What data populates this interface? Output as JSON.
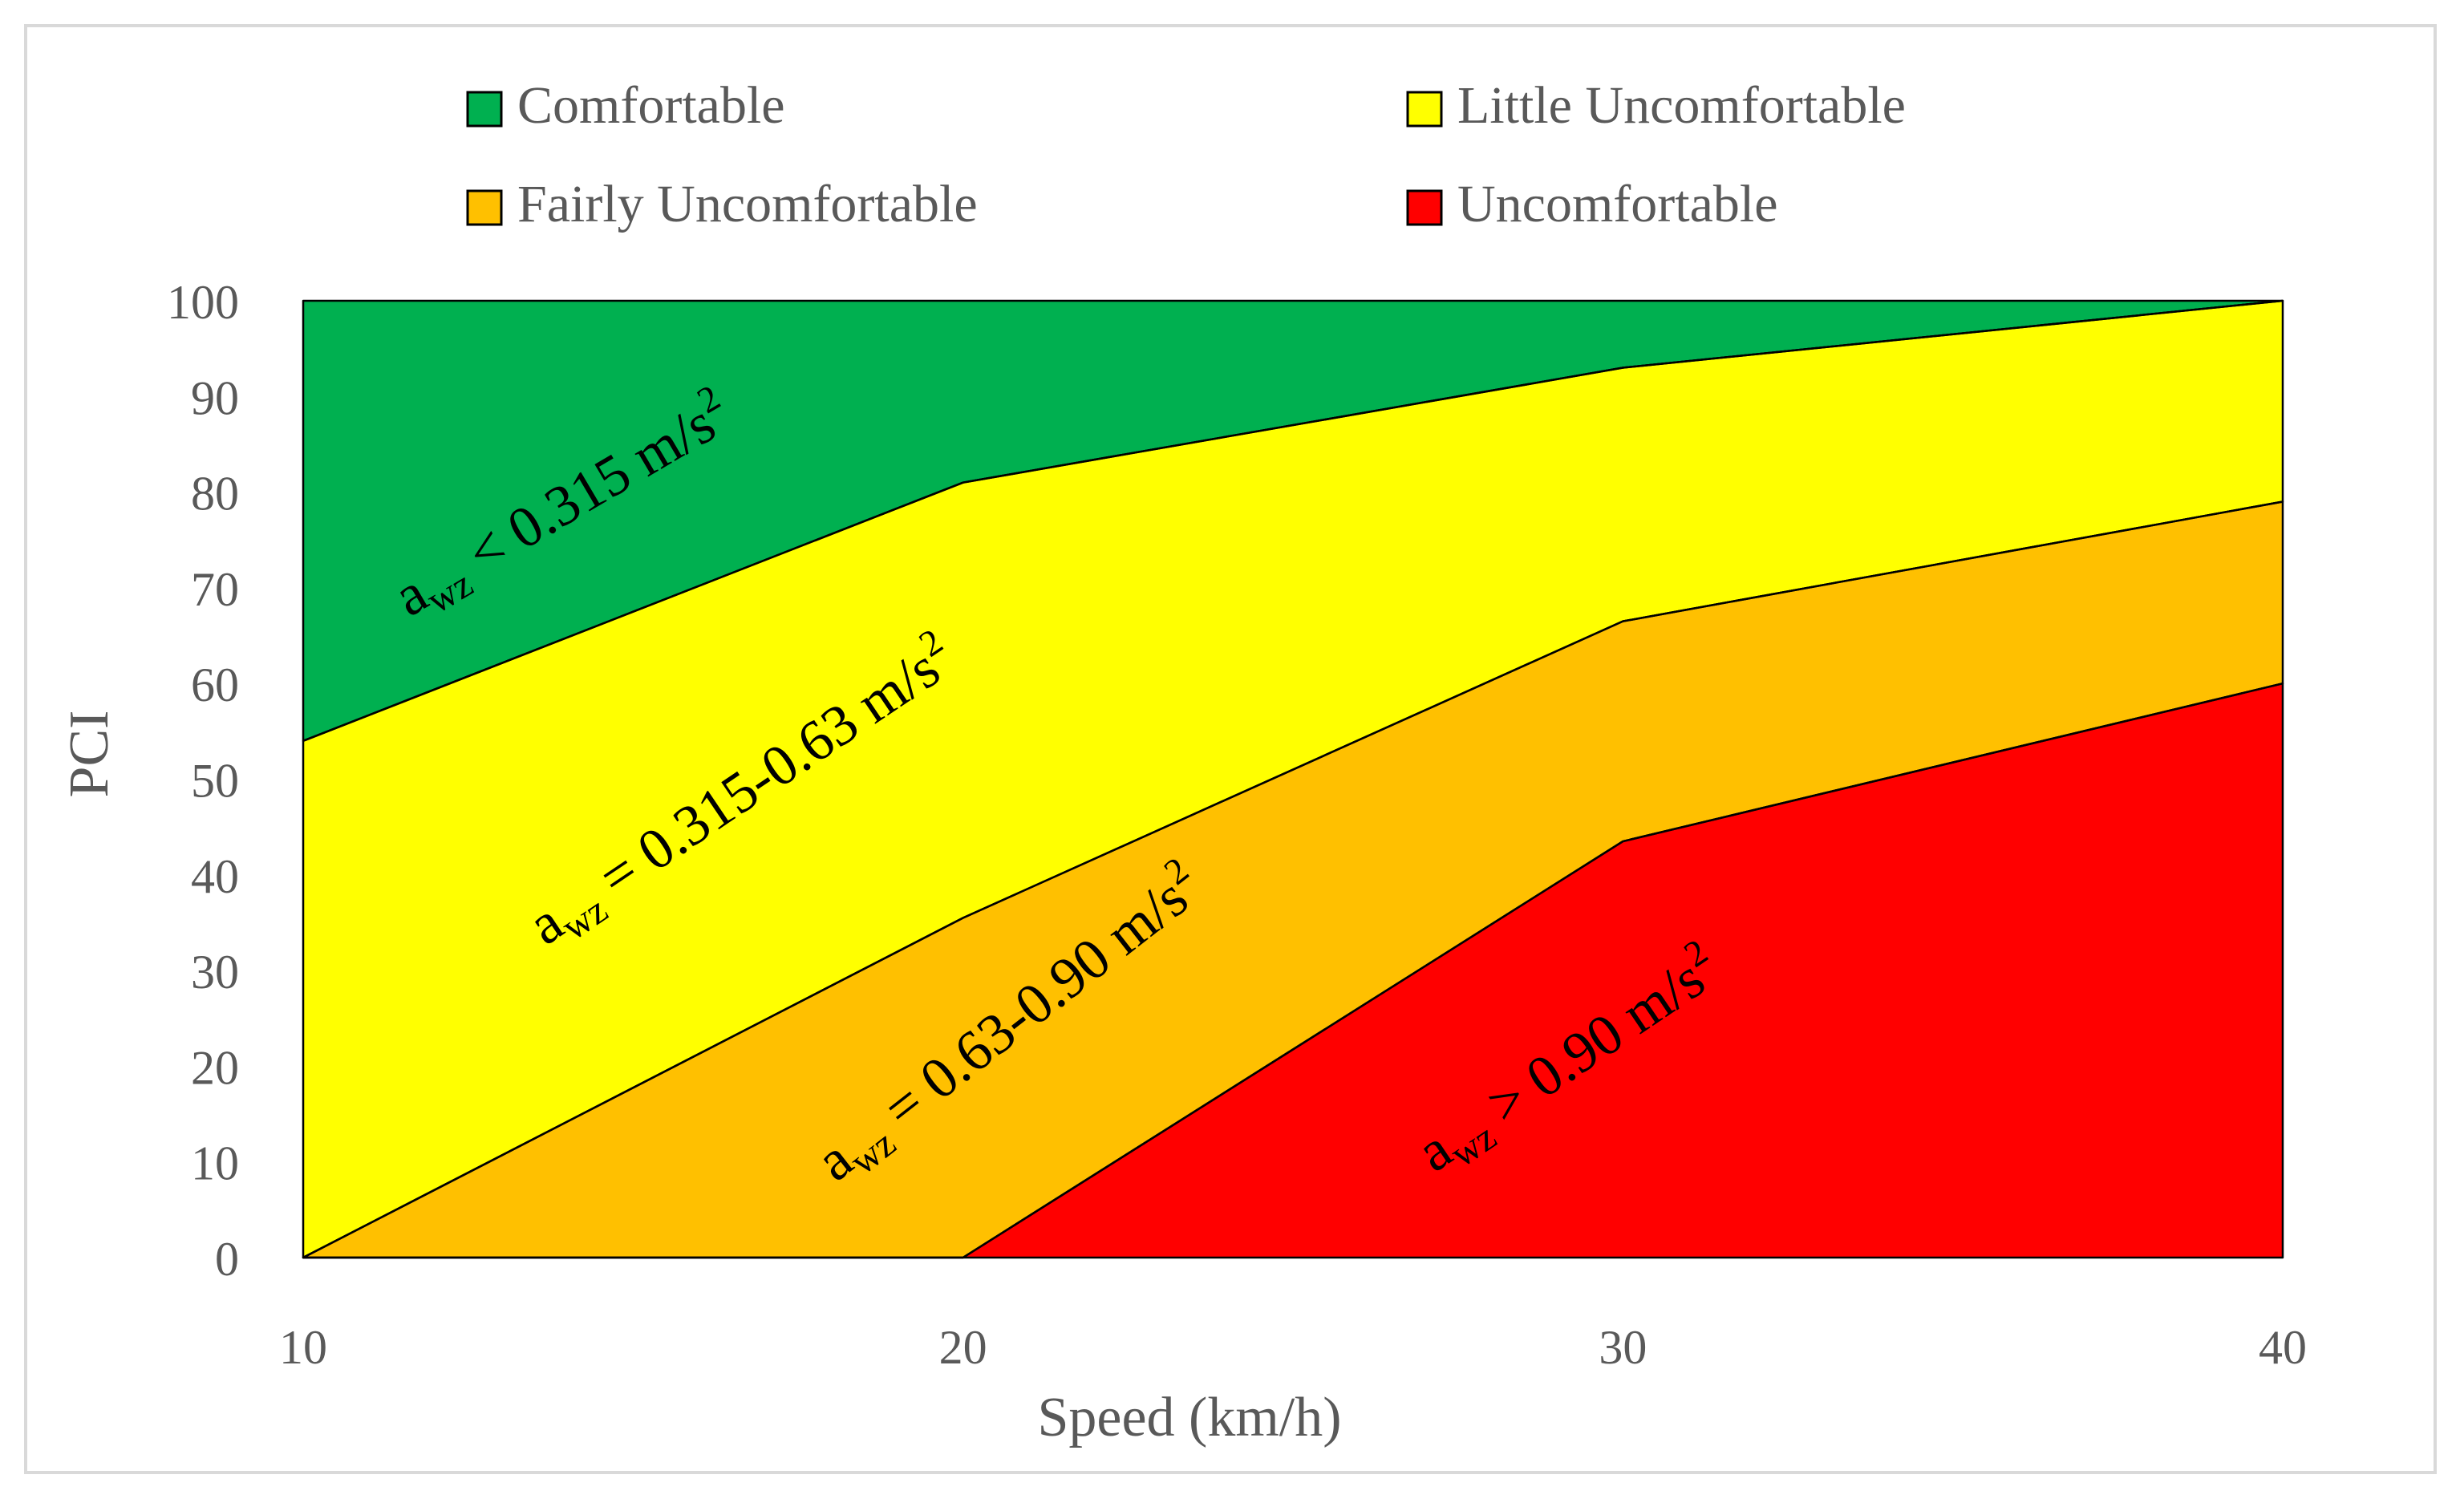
{
  "chart_data": {
    "type": "area",
    "title": "",
    "xlabel": "Speed (km/h)",
    "ylabel": "PCI",
    "x": [
      10,
      20,
      30,
      40
    ],
    "xlim": [
      10,
      40
    ],
    "ylim": [
      0,
      100
    ],
    "x_ticks": [
      "10",
      "20",
      "30",
      "40"
    ],
    "y_ticks": [
      "0",
      "10",
      "20",
      "30",
      "40",
      "50",
      "60",
      "70",
      "80",
      "90",
      "100"
    ],
    "legend_position": "top",
    "boundaries": [
      {
        "name": "Comfortable lower bound",
        "values": [
          54,
          81,
          93,
          100
        ]
      },
      {
        "name": "Little Uncomfortable lower bound",
        "values": [
          0,
          35.5,
          66.5,
          79
        ]
      },
      {
        "name": "Fairly Uncomfortable lower bound",
        "values": [
          0,
          0,
          43.5,
          60
        ]
      }
    ],
    "series": [
      {
        "name": "Comfortable",
        "color": "#00b050",
        "annotation": "a",
        "annotation_sub": "wz",
        "annotation_rest": " < 0.315 m/s",
        "annotation_sup": "2"
      },
      {
        "name": "Little Uncomfortable",
        "color": "#ffff00",
        "annotation": "a",
        "annotation_sub": "wz",
        "annotation_rest": " = 0.315-0.63 m/s",
        "annotation_sup": "2"
      },
      {
        "name": "Fairly Uncomfortable",
        "color": "#ffc000",
        "annotation": "a",
        "annotation_sub": "wz",
        "annotation_rest": " = 0.63-0.90 m/s",
        "annotation_sup": "2"
      },
      {
        "name": "Uncomfortable",
        "color": "#ff0000",
        "annotation": "a",
        "annotation_sub": "wz",
        "annotation_rest": " >  0.90 m/s",
        "annotation_sup": "2"
      }
    ]
  }
}
